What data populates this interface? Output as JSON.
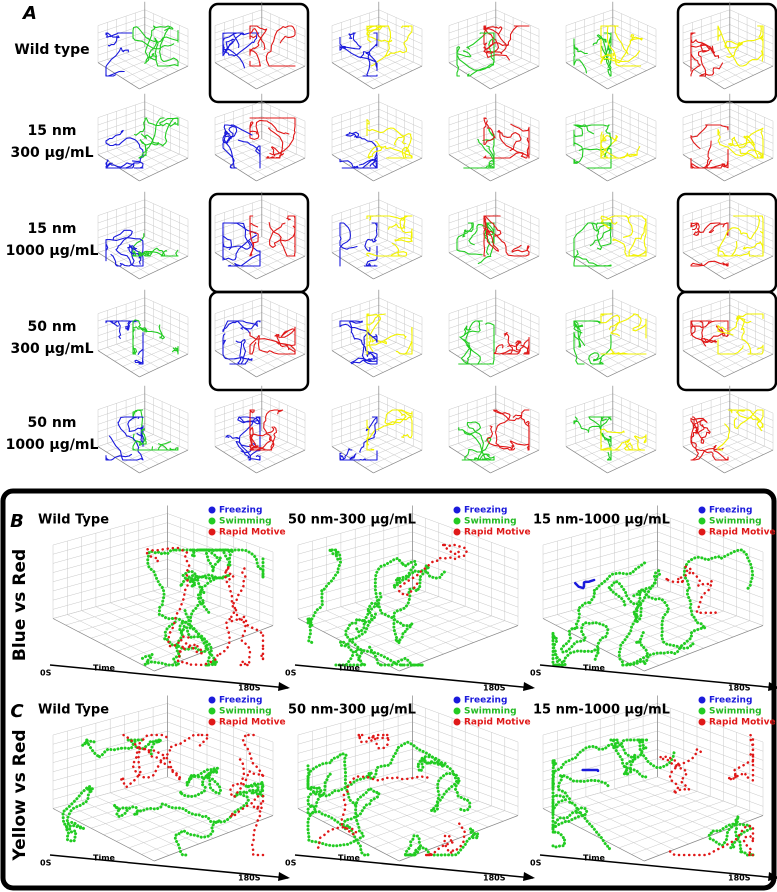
{
  "panel_a": {
    "label": "A",
    "rows": [
      {
        "label": [
          "Wild type"
        ]
      },
      {
        "label": [
          "15 nm",
          "300 μg/mL"
        ]
      },
      {
        "label": [
          "15 nm",
          "1000 μg/mL"
        ]
      },
      {
        "label": [
          "50 nm",
          "300 μg/mL"
        ]
      },
      {
        "label": [
          "50 nm",
          "1000 μg/mL"
        ]
      }
    ]
  },
  "panels": [
    {
      "label": "B",
      "row_label": "Blue vs Red",
      "plots": [
        {
          "title": "Wild Type",
          "legend": [
            "Freezing",
            "Swimming",
            "Rapid Motive"
          ],
          "axis": [
            "0S",
            "Time",
            "180S"
          ]
        },
        {
          "title": "50 nm-300 μg/mL",
          "legend": [
            "Freezing",
            "Swimming",
            "Rapid Motive"
          ],
          "axis": [
            "0S",
            "Time",
            "180S"
          ]
        },
        {
          "title": "15 nm-1000 μg/mL",
          "legend": [
            "Freezing",
            "Swimming",
            "Rapid Motive"
          ],
          "axis": [
            "0S",
            "Time",
            "180S"
          ]
        }
      ]
    },
    {
      "label": "C",
      "row_label": "Yellow vs Red",
      "plots": [
        {
          "title": "Wild Type",
          "legend": [
            "Freezing",
            "Swimming",
            "Rapid Motive"
          ],
          "axis": [
            "0S",
            "Time",
            "180S"
          ]
        },
        {
          "title": "50 nm-300 μg/mL",
          "legend": [
            "Freezing",
            "Swimming",
            "Rapid Motive"
          ],
          "axis": [
            "0S",
            "Time",
            "180S"
          ]
        },
        {
          "title": "15 nm-1000 μg/mL",
          "legend": [
            "Freezing",
            "Swimming",
            "Rapid Motive"
          ],
          "axis": [
            "0S",
            "Time",
            "180S"
          ]
        }
      ]
    }
  ]
}
